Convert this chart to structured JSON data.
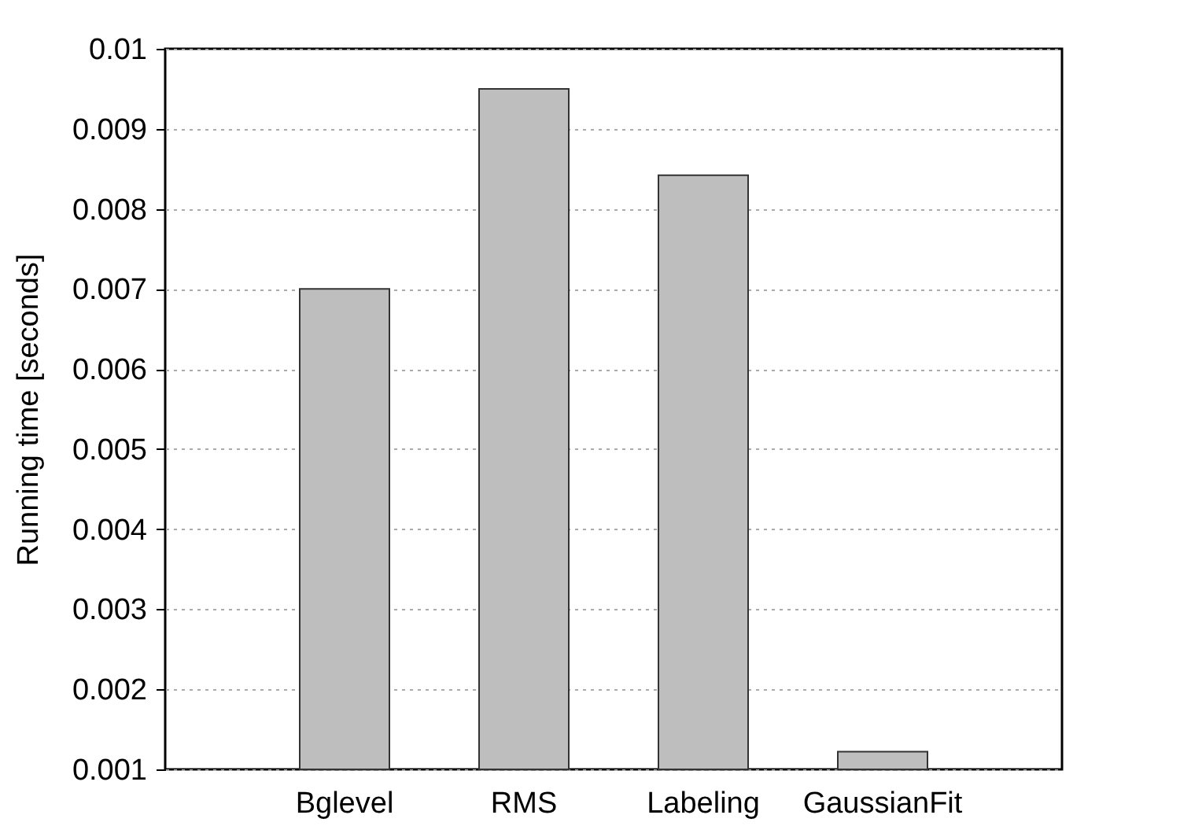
{
  "chart_data": {
    "type": "bar",
    "ylabel": "Running time [seconds]",
    "categories": [
      "Bglevel",
      "RMS",
      "Labeling",
      "GaussianFit"
    ],
    "values": [
      0.007,
      0.0095,
      0.00842,
      0.00122
    ],
    "color": "#bebebe",
    "ylim": [
      0.001,
      0.01
    ],
    "yticks": [
      0.001,
      0.002,
      0.003,
      0.004,
      0.005,
      0.006,
      0.007,
      0.008,
      0.009,
      0.01
    ],
    "grid": "y"
  }
}
